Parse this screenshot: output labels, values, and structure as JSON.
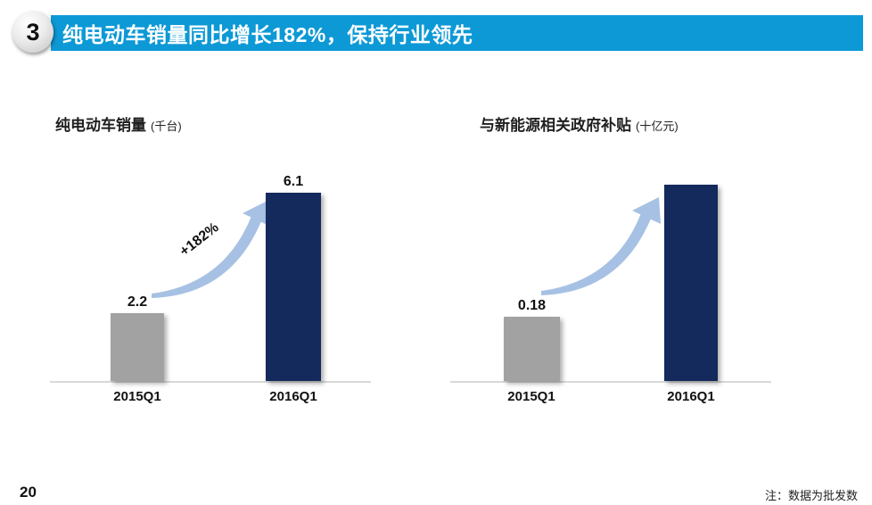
{
  "slide": {
    "badge": "3",
    "header": "纯电动车销量同比增长182%，保持行业领先",
    "page_number": "20",
    "footnote": "注：数据为批发数"
  },
  "colors": {
    "banner_blue": "#0d99d6",
    "arrow_blue": "#a6c1e3",
    "axis_gray": "#d9d9d9",
    "bar_gray": "#a2a2a2",
    "bar_navy": "#14295c"
  },
  "chart_data": [
    {
      "type": "bar",
      "title": "纯电动车销量",
      "unit_label": "(千台)",
      "categories": [
        "2015Q1",
        "2016Q1"
      ],
      "values": [
        2.2,
        6.1
      ],
      "value_labels": [
        "2.2",
        "6.1"
      ],
      "bar_colors": [
        "#a2a2a2",
        "#14295c"
      ],
      "annotation": "+182%",
      "annotation_style": "curved growth arrow from 2015Q1 bar to 2016Q1 bar",
      "xlabel": "",
      "ylabel": "",
      "ylim": [
        0,
        6.5
      ],
      "grid": false,
      "legend": "none"
    },
    {
      "type": "bar",
      "title": "与新能源相关政府补贴",
      "unit_label": "(十亿元)",
      "categories": [
        "2015Q1",
        "2016Q1"
      ],
      "values": [
        0.18,
        null
      ],
      "value_labels": [
        "0.18",
        ""
      ],
      "bar_colors": [
        "#a2a2a2",
        "#14295c"
      ],
      "annotation": "",
      "annotation_style": "curved growth arrow from 2015Q1 bar to 2016Q1 bar; 2016Q1 bar drawn off-scale with no data label",
      "xlabel": "",
      "ylabel": "",
      "ylim": [
        0,
        0.25
      ],
      "grid": false,
      "legend": "none"
    }
  ]
}
